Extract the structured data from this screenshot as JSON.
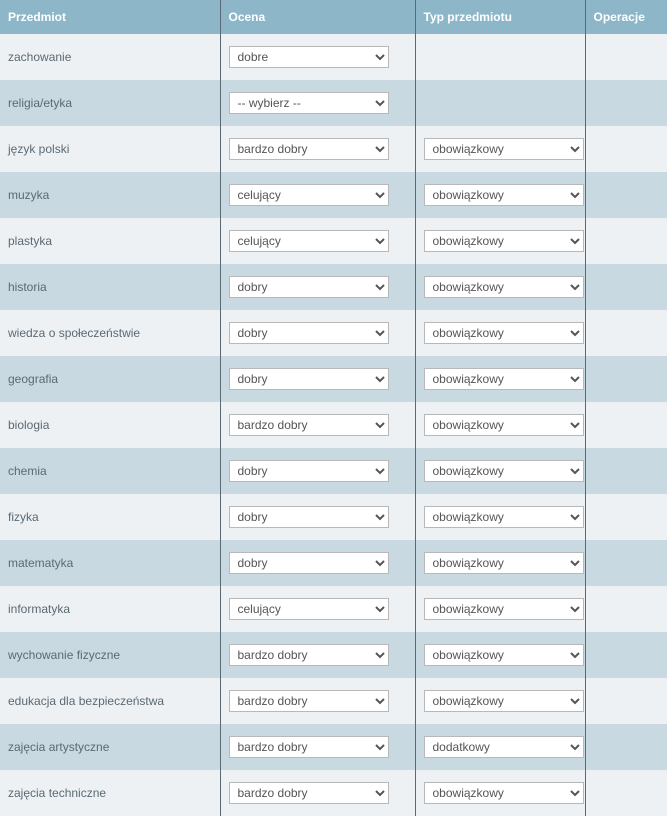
{
  "headers": {
    "subject": "Przedmiot",
    "grade": "Ocena",
    "type": "Typ przedmiotu",
    "ops": "Operacje"
  },
  "placeholder": "-- wybierz --",
  "rows": [
    {
      "subject": "zachowanie",
      "grade": "dobre",
      "type": null
    },
    {
      "subject": "religia/etyka",
      "grade": "",
      "type": null
    },
    {
      "subject": "język polski",
      "grade": "bardzo dobry",
      "type": "obowiązkowy"
    },
    {
      "subject": "muzyka",
      "grade": "celujący",
      "type": "obowiązkowy"
    },
    {
      "subject": "plastyka",
      "grade": "celujący",
      "type": "obowiązkowy"
    },
    {
      "subject": "historia",
      "grade": "dobry",
      "type": "obowiązkowy"
    },
    {
      "subject": "wiedza o społeczeństwie",
      "grade": "dobry",
      "type": "obowiązkowy"
    },
    {
      "subject": "geografia",
      "grade": "dobry",
      "type": "obowiązkowy"
    },
    {
      "subject": "biologia",
      "grade": "bardzo dobry",
      "type": "obowiązkowy"
    },
    {
      "subject": "chemia",
      "grade": "dobry",
      "type": "obowiązkowy"
    },
    {
      "subject": "fizyka",
      "grade": "dobry",
      "type": "obowiązkowy"
    },
    {
      "subject": "matematyka",
      "grade": "dobry",
      "type": "obowiązkowy"
    },
    {
      "subject": "informatyka",
      "grade": "celujący",
      "type": "obowiązkowy"
    },
    {
      "subject": "wychowanie fizyczne",
      "grade": "bardzo dobry",
      "type": "obowiązkowy"
    },
    {
      "subject": "edukacja dla bezpieczeństwa",
      "grade": "bardzo dobry",
      "type": "obowiązkowy"
    },
    {
      "subject": "zajęcia artystyczne",
      "grade": "bardzo dobry",
      "type": "dodatkowy"
    },
    {
      "subject": "zajęcia techniczne",
      "grade": "bardzo dobry",
      "type": "obowiązkowy"
    }
  ],
  "colors": {
    "header_bg": "#8eb6c9",
    "row_odd": "#eef1f3",
    "row_even": "#c8d9e1",
    "border": "#5a6a75",
    "text": "#5a6a75"
  }
}
